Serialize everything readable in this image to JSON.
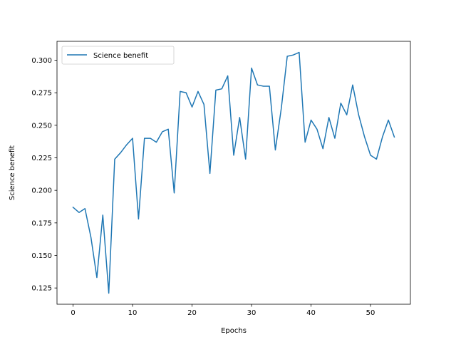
{
  "chart_data": {
    "type": "line",
    "xlabel": "Epochs",
    "ylabel": "Science benefit",
    "xlim": [
      -2.7,
      56.7
    ],
    "ylim": [
      0.1125,
      0.3145
    ],
    "xticks": [
      0,
      10,
      20,
      30,
      40,
      50
    ],
    "yticks": [
      0.125,
      0.15,
      0.175,
      0.2,
      0.225,
      0.25,
      0.275,
      0.3
    ],
    "ytick_labels": [
      "0.125",
      "0.150",
      "0.175",
      "0.200",
      "0.225",
      "0.250",
      "0.275",
      "0.300"
    ],
    "grid": false,
    "legend": "upper-left",
    "series": [
      {
        "name": "Science benefit",
        "color": "#1f77b4",
        "x": [
          0,
          1,
          2,
          3,
          4,
          5,
          6,
          7,
          8,
          9,
          10,
          11,
          12,
          13,
          14,
          15,
          16,
          17,
          18,
          19,
          20,
          21,
          22,
          23,
          24,
          25,
          26,
          27,
          28,
          29,
          30,
          31,
          32,
          33,
          34,
          35,
          36,
          37,
          38,
          39,
          40,
          41,
          42,
          43,
          44,
          45,
          46,
          47,
          48,
          49,
          50,
          51,
          52,
          53,
          54
        ],
        "values": [
          0.187,
          0.183,
          0.186,
          0.164,
          0.133,
          0.181,
          0.121,
          0.224,
          0.229,
          0.235,
          0.24,
          0.178,
          0.24,
          0.24,
          0.237,
          0.245,
          0.247,
          0.198,
          0.276,
          0.275,
          0.264,
          0.276,
          0.266,
          0.213,
          0.277,
          0.278,
          0.288,
          0.227,
          0.256,
          0.224,
          0.294,
          0.281,
          0.28,
          0.28,
          0.231,
          0.263,
          0.303,
          0.304,
          0.306,
          0.237,
          0.254,
          0.247,
          0.232,
          0.256,
          0.24,
          0.267,
          0.258,
          0.281,
          0.258,
          0.241,
          0.227,
          0.224,
          0.241,
          0.254,
          0.241
        ]
      }
    ]
  }
}
